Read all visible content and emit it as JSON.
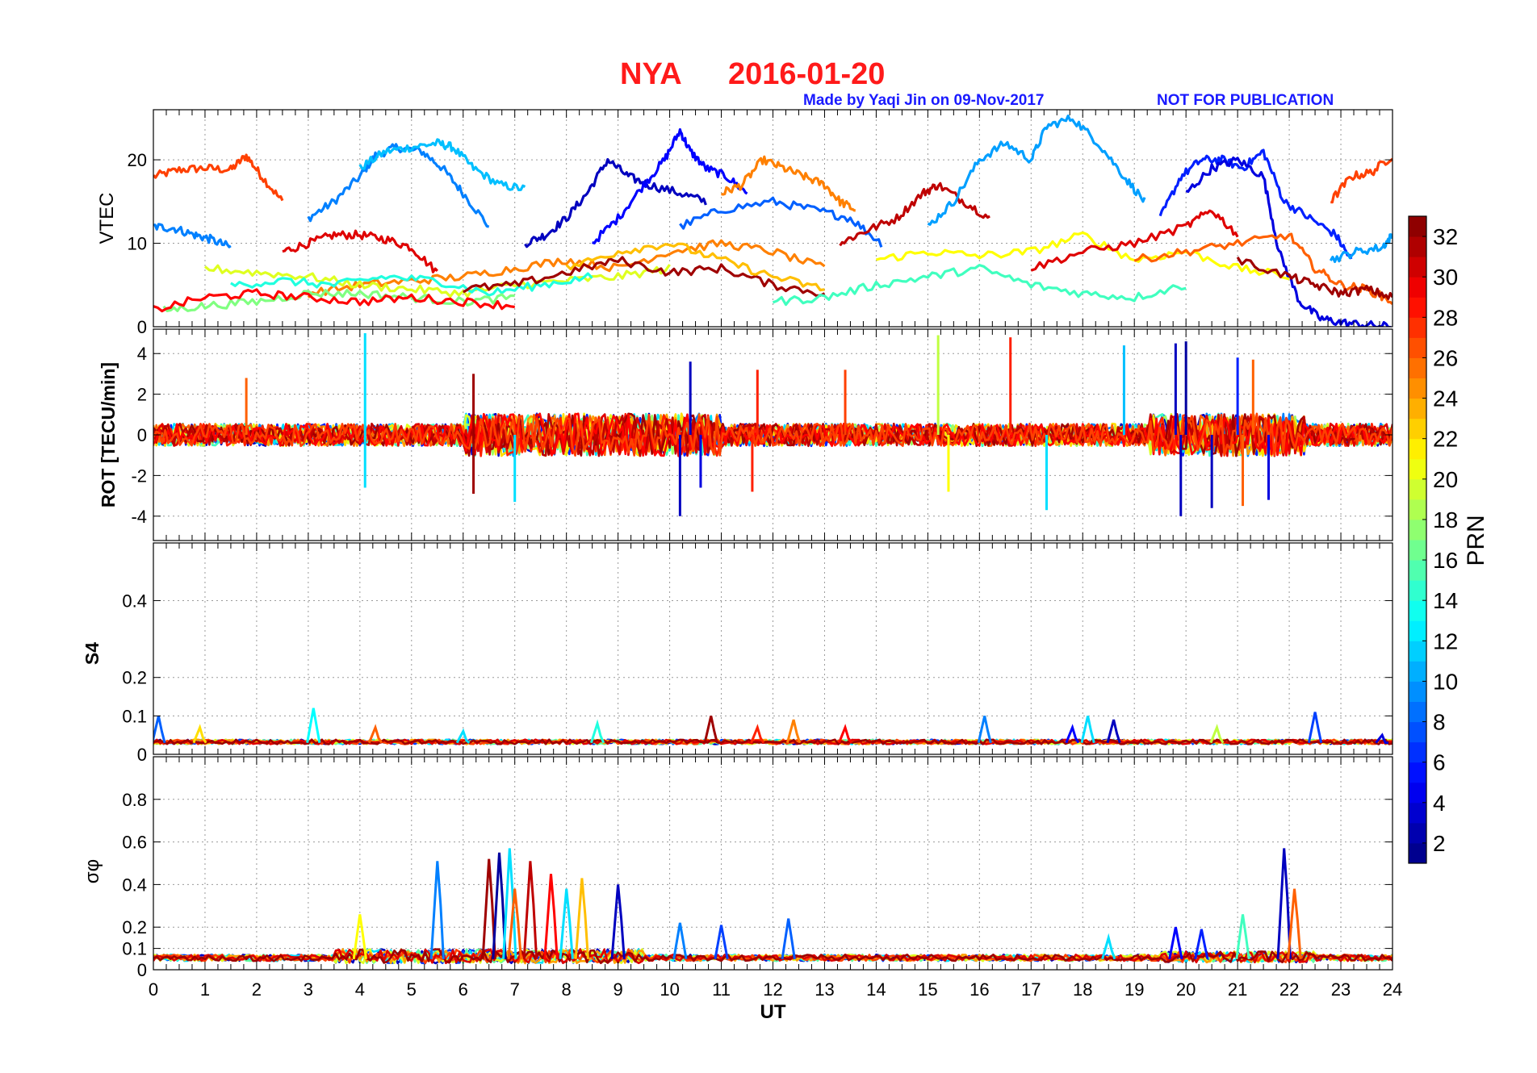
{
  "figure": {
    "title_station": "NYA",
    "title_date": "2016-01-20",
    "credit": "Made by Yaqi Jin on 09-Nov-2017",
    "watermark": "NOT FOR PUBLICATION",
    "title_color": "#ff1a1a",
    "credit_color": "#1a1aff"
  },
  "chart_data": [
    {
      "id": "vtec",
      "type": "line",
      "ylabel": "VTEC",
      "ylim": [
        0,
        26
      ],
      "yticks": [
        0,
        10,
        20
      ],
      "xlim": [
        0,
        24
      ],
      "grid": true,
      "series": [
        {
          "prn": 27,
          "x": [
            0,
            0.5,
            1,
            1.5,
            1.8,
            2.1,
            2.5
          ],
          "y": [
            18,
            18.8,
            19,
            18.8,
            20.5,
            18,
            15
          ]
        },
        {
          "prn": 9,
          "x": [
            3,
            3.5,
            4,
            4.3,
            4.7,
            5.2,
            5.6,
            6,
            6.5
          ],
          "y": [
            13,
            15,
            18,
            20.5,
            21.5,
            21,
            19,
            16,
            12
          ]
        },
        {
          "prn": 11,
          "x": [
            4,
            4.5,
            5,
            5.5,
            5.8,
            6.2,
            6.7,
            7.2
          ],
          "y": [
            19,
            21,
            21.5,
            22,
            21.5,
            19,
            17,
            16.5
          ]
        },
        {
          "prn": 9,
          "x": [
            0,
            0.4,
            0.8,
            1.1,
            1.5
          ],
          "y": [
            12,
            11.8,
            11,
            10.5,
            9.5
          ]
        },
        {
          "prn": 30,
          "x": [
            2.5,
            3,
            3.5,
            4,
            4.5,
            5,
            5.5
          ],
          "y": [
            9,
            10,
            11,
            11,
            10.5,
            9.5,
            6.5
          ]
        },
        {
          "prn": 3,
          "x": [
            7.2,
            7.6,
            8,
            8.4,
            8.8,
            9.2,
            9.6,
            10.2,
            10.7
          ],
          "y": [
            10,
            11,
            13,
            16,
            20,
            18,
            17,
            16,
            15
          ]
        },
        {
          "prn": 5,
          "x": [
            8.5,
            9,
            9.5,
            9.9,
            10.2,
            10.4,
            10.7,
            11.1,
            11.5
          ],
          "y": [
            10,
            13,
            17,
            20,
            23.5,
            21,
            19,
            18,
            16
          ]
        },
        {
          "prn": 25,
          "x": [
            11,
            11.4,
            11.8,
            12.2,
            12.6,
            13,
            13.3,
            13.6
          ],
          "y": [
            16,
            17,
            20,
            19,
            18,
            17,
            15,
            14
          ]
        },
        {
          "prn": 8,
          "x": [
            10.2,
            11,
            12,
            12.8,
            13.5,
            14.1
          ],
          "y": [
            12,
            14,
            15,
            14,
            13,
            10
          ]
        },
        {
          "prn": 31,
          "x": [
            13.3,
            13.8,
            14.4,
            14.9,
            15.2,
            15.7,
            16.2
          ],
          "y": [
            10,
            11.5,
            13,
            16,
            17,
            15,
            13
          ]
        },
        {
          "prn": 10,
          "x": [
            15,
            15.5,
            16,
            16.5,
            17,
            17.3,
            17.8,
            18.3,
            18.8,
            19.2
          ],
          "y": [
            12,
            15,
            20,
            22,
            20,
            24,
            25,
            22,
            18,
            15
          ]
        },
        {
          "prn": 6,
          "x": [
            19.5,
            19.9,
            20.3,
            20.7,
            21.1,
            21.5,
            21.9,
            22.4,
            22.9,
            23.2
          ],
          "y": [
            13,
            18,
            20,
            20,
            19,
            21,
            15,
            13,
            11,
            8
          ]
        },
        {
          "prn": 4,
          "x": [
            20,
            20.5,
            21,
            21.5,
            21.8,
            22.2,
            22.6,
            23,
            23.5,
            24
          ],
          "y": [
            16,
            19,
            20,
            18,
            9,
            3,
            1,
            0.5,
            0.2,
            0
          ]
        },
        {
          "prn": 27,
          "x": [
            22.8,
            23.2,
            23.6,
            24
          ],
          "y": [
            15,
            18,
            18.5,
            20.5
          ]
        },
        {
          "prn": 10,
          "x": [
            22.8,
            23.3,
            23.8,
            24
          ],
          "y": [
            8,
            9,
            9.5,
            11
          ]
        },
        {
          "prn": 25,
          "x": [
            3,
            4,
            5,
            6,
            7,
            8,
            9,
            10,
            11,
            12,
            13
          ],
          "y": [
            4,
            5,
            5.5,
            6,
            7,
            8,
            7,
            9,
            10,
            9,
            7
          ]
        },
        {
          "prn": 20,
          "x": [
            1,
            2,
            3,
            4,
            5,
            6,
            7,
            8,
            9,
            10
          ],
          "y": [
            7,
            6.5,
            6,
            5,
            4.5,
            4,
            5,
            5.5,
            6,
            7
          ]
        },
        {
          "prn": 14,
          "x": [
            1.5,
            2.5,
            3.5,
            4.5,
            5.5,
            6.5,
            7.5,
            8.5
          ],
          "y": [
            5,
            5.5,
            5,
            6,
            5.5,
            4,
            5,
            6
          ]
        },
        {
          "prn": 17,
          "x": [
            0.2,
            1,
            2,
            3,
            4,
            5,
            6,
            7
          ],
          "y": [
            2,
            2.5,
            3,
            4,
            4,
            3.5,
            3,
            3.5
          ]
        },
        {
          "prn": 29,
          "x": [
            0,
            1,
            2,
            3,
            4,
            5,
            6,
            7
          ],
          "y": [
            2,
            3.5,
            4,
            3.5,
            3,
            3.5,
            3,
            2.5
          ]
        },
        {
          "prn": 32,
          "x": [
            6,
            7,
            8,
            9,
            10,
            11,
            12,
            13
          ],
          "y": [
            4.5,
            5,
            6.5,
            8,
            6.5,
            7,
            5,
            4
          ]
        },
        {
          "prn": 23,
          "x": [
            8,
            9,
            10,
            11,
            12,
            13
          ],
          "y": [
            7,
            9,
            10,
            8,
            6,
            4.5
          ]
        },
        {
          "prn": 21,
          "x": [
            14,
            15,
            16,
            17,
            18,
            19,
            20,
            21,
            22
          ],
          "y": [
            8,
            9,
            8.5,
            9,
            11,
            8,
            9,
            7,
            6
          ]
        },
        {
          "prn": 15,
          "x": [
            12,
            13,
            14,
            15,
            16,
            17,
            18,
            19,
            20
          ],
          "y": [
            3,
            3.5,
            5,
            6,
            7,
            5,
            4,
            3.5,
            5
          ]
        },
        {
          "prn": 30,
          "x": [
            17,
            18,
            19,
            20,
            20.5,
            21
          ],
          "y": [
            7,
            9,
            10,
            12,
            14,
            11
          ]
        },
        {
          "prn": 26,
          "x": [
            19,
            20,
            21,
            22,
            22.5,
            23,
            23.5,
            24
          ],
          "y": [
            8,
            9,
            10,
            11,
            7,
            5,
            4.5,
            3
          ]
        },
        {
          "prn": 32,
          "x": [
            21,
            22,
            22.5,
            23,
            23.5,
            24
          ],
          "y": [
            8,
            6,
            5,
            4,
            4.5,
            3.5
          ]
        }
      ]
    },
    {
      "id": "rot",
      "type": "line",
      "ylabel": "ROT [TECU/min]",
      "ylim": [
        -5.2,
        5.2
      ],
      "yticks": [
        -4,
        -2,
        0,
        2,
        4
      ],
      "xlim": [
        0,
        24
      ],
      "grid": true,
      "spikes": [
        {
          "x": 4.1,
          "y": 5,
          "prn": 12
        },
        {
          "x": 4.1,
          "y": -2.6,
          "prn": 12
        },
        {
          "x": 1.8,
          "y": 2.8,
          "prn": 26
        },
        {
          "x": 6.2,
          "y": 3,
          "prn": 32
        },
        {
          "x": 6.2,
          "y": -2.9,
          "prn": 32
        },
        {
          "x": 7.0,
          "y": -3.3,
          "prn": 12
        },
        {
          "x": 10.4,
          "y": 3.6,
          "prn": 3
        },
        {
          "x": 10.2,
          "y": -4,
          "prn": 3
        },
        {
          "x": 10.6,
          "y": -2.6,
          "prn": 4
        },
        {
          "x": 11.7,
          "y": 3.2,
          "prn": 28
        },
        {
          "x": 11.6,
          "y": -2.8,
          "prn": 28
        },
        {
          "x": 13.4,
          "y": 3.2,
          "prn": 27
        },
        {
          "x": 15.2,
          "y": 4.9,
          "prn": 19
        },
        {
          "x": 15.4,
          "y": -2.8,
          "prn": 21
        },
        {
          "x": 16.6,
          "y": 4.8,
          "prn": 28
        },
        {
          "x": 17.3,
          "y": -3.7,
          "prn": 12
        },
        {
          "x": 18.8,
          "y": 4.4,
          "prn": 11
        },
        {
          "x": 19.8,
          "y": 4.5,
          "prn": 3
        },
        {
          "x": 19.9,
          "y": -4.0,
          "prn": 3
        },
        {
          "x": 20.0,
          "y": 4.6,
          "prn": 2
        },
        {
          "x": 20.5,
          "y": -3.6,
          "prn": 3
        },
        {
          "x": 21.0,
          "y": 3.8,
          "prn": 6
        },
        {
          "x": 21.1,
          "y": -3.5,
          "prn": 26
        },
        {
          "x": 21.3,
          "y": 3.7,
          "prn": 26
        },
        {
          "x": 21.6,
          "y": -3.2,
          "prn": 4
        }
      ],
      "noise_amplitude": 0.55
    },
    {
      "id": "s4",
      "type": "line",
      "ylabel": "S4",
      "ylim": [
        0,
        0.55
      ],
      "yticks": [
        0,
        0.1,
        0.2,
        0.4
      ],
      "xlim": [
        0,
        24
      ],
      "grid": true,
      "baseline": 0.03,
      "peaks": [
        {
          "x": 0.1,
          "y": 0.1,
          "prn": 8
        },
        {
          "x": 0.9,
          "y": 0.07,
          "prn": 22
        },
        {
          "x": 3.1,
          "y": 0.12,
          "prn": 13
        },
        {
          "x": 4.3,
          "y": 0.07,
          "prn": 26
        },
        {
          "x": 6.0,
          "y": 0.06,
          "prn": 12
        },
        {
          "x": 8.6,
          "y": 0.08,
          "prn": 14
        },
        {
          "x": 10.8,
          "y": 0.1,
          "prn": 32
        },
        {
          "x": 11.7,
          "y": 0.07,
          "prn": 28
        },
        {
          "x": 12.4,
          "y": 0.09,
          "prn": 25
        },
        {
          "x": 13.4,
          "y": 0.07,
          "prn": 29
        },
        {
          "x": 16.1,
          "y": 0.1,
          "prn": 9
        },
        {
          "x": 17.8,
          "y": 0.07,
          "prn": 5
        },
        {
          "x": 18.1,
          "y": 0.1,
          "prn": 12
        },
        {
          "x": 18.6,
          "y": 0.09,
          "prn": 3
        },
        {
          "x": 20.6,
          "y": 0.07,
          "prn": 19
        },
        {
          "x": 22.5,
          "y": 0.11,
          "prn": 7
        },
        {
          "x": 23.8,
          "y": 0.05,
          "prn": 4
        }
      ]
    },
    {
      "id": "sigma_phi",
      "type": "line",
      "ylabel": "σφ",
      "ylim": [
        0,
        1.0
      ],
      "yticks": [
        0,
        0.1,
        0.2,
        0.4,
        0.6,
        0.8
      ],
      "xlim": [
        0,
        24
      ],
      "xlabel": "UT",
      "xticks": [
        0,
        1,
        2,
        3,
        4,
        5,
        6,
        7,
        8,
        9,
        10,
        11,
        12,
        13,
        14,
        15,
        16,
        17,
        18,
        19,
        20,
        21,
        22,
        23,
        24
      ],
      "grid": true,
      "baseline": 0.05,
      "peaks": [
        {
          "x": 4.0,
          "y": 0.26,
          "prn": 21
        },
        {
          "x": 5.5,
          "y": 0.51,
          "prn": 9
        },
        {
          "x": 6.5,
          "y": 0.52,
          "prn": 32
        },
        {
          "x": 6.7,
          "y": 0.55,
          "prn": 2
        },
        {
          "x": 6.9,
          "y": 0.57,
          "prn": 12
        },
        {
          "x": 7.3,
          "y": 0.51,
          "prn": 31
        },
        {
          "x": 7.7,
          "y": 0.45,
          "prn": 29
        },
        {
          "x": 8.3,
          "y": 0.43,
          "prn": 23
        },
        {
          "x": 9.0,
          "y": 0.4,
          "prn": 3
        },
        {
          "x": 8.0,
          "y": 0.38,
          "prn": 12
        },
        {
          "x": 7.0,
          "y": 0.38,
          "prn": 26
        },
        {
          "x": 10.2,
          "y": 0.22,
          "prn": 9
        },
        {
          "x": 11.0,
          "y": 0.21,
          "prn": 7
        },
        {
          "x": 12.3,
          "y": 0.24,
          "prn": 8
        },
        {
          "x": 19.8,
          "y": 0.2,
          "prn": 5
        },
        {
          "x": 20.3,
          "y": 0.19,
          "prn": 6
        },
        {
          "x": 21.1,
          "y": 0.26,
          "prn": 15
        },
        {
          "x": 21.9,
          "y": 0.57,
          "prn": 3
        },
        {
          "x": 22.1,
          "y": 0.38,
          "prn": 26
        },
        {
          "x": 18.5,
          "y": 0.15,
          "prn": 12
        }
      ]
    }
  ],
  "colorbar": {
    "label": "PRN",
    "range": [
      1,
      33
    ],
    "ticks": [
      2,
      4,
      6,
      8,
      10,
      12,
      14,
      16,
      18,
      20,
      22,
      24,
      26,
      28,
      30,
      32
    ],
    "colormap": "jet"
  }
}
